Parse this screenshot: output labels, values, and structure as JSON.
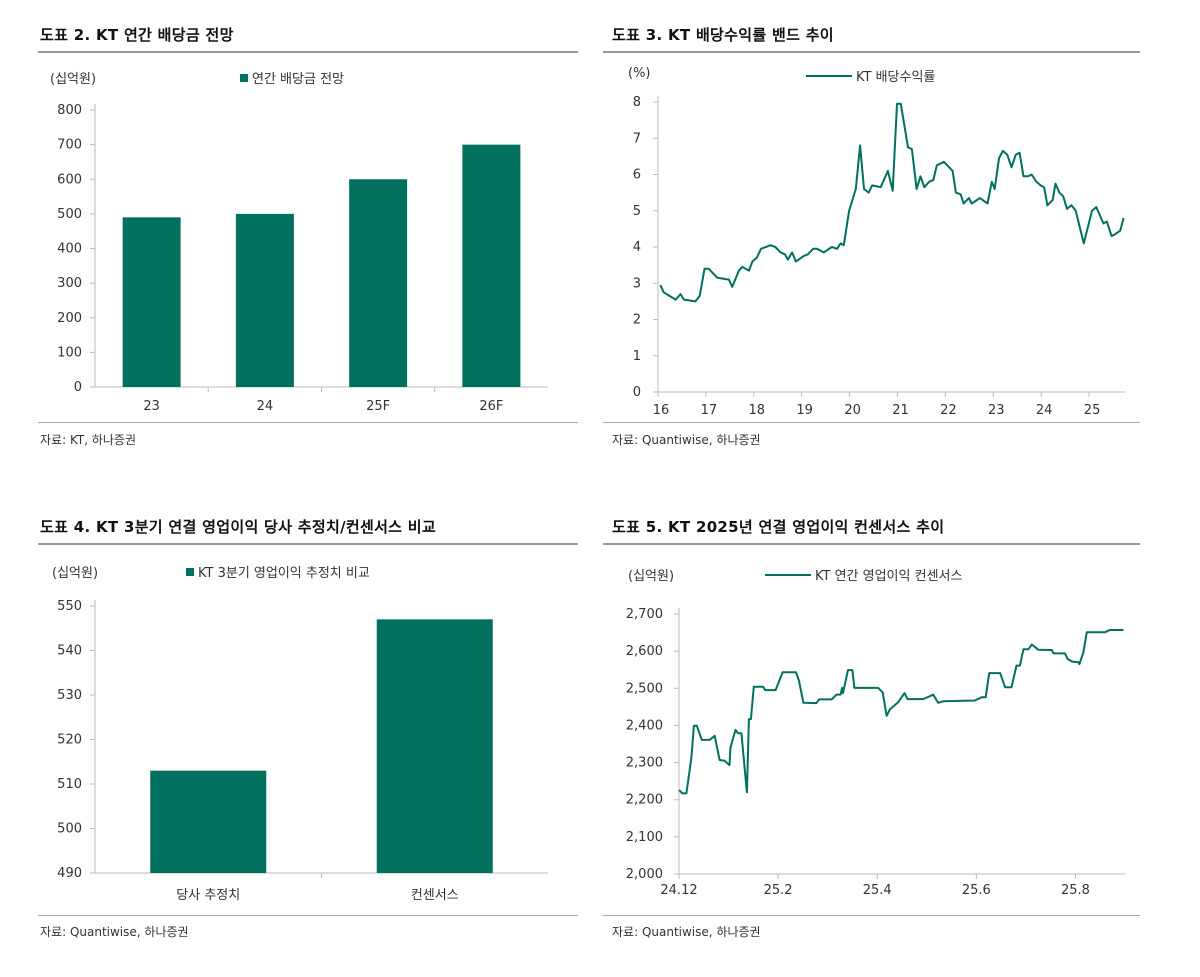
{
  "colors": {
    "accent": "#00705f"
  },
  "chart_data": [
    {
      "id": "c2",
      "type": "bar",
      "title": "도표 2. KT 연간 배당금 전망",
      "unit": "(십억원)",
      "legend": "연간 배당금 전망",
      "source": "자료: KT, 하나증권",
      "categories": [
        "23",
        "24",
        "25F",
        "26F"
      ],
      "values": [
        490,
        500,
        600,
        700
      ],
      "ylim": [
        0,
        800
      ],
      "yticks": [
        "0",
        "100",
        "200",
        "300",
        "400",
        "500",
        "600",
        "700",
        "800"
      ]
    },
    {
      "id": "c3",
      "type": "line",
      "title": "도표 3. KT 배당수익률 밴드 추이",
      "unit": "(%)",
      "legend": "KT 배당수익률",
      "source": "자료: Quantiwise, 하나증권",
      "xlim": [
        16,
        25.75
      ],
      "ylim": [
        0,
        8
      ],
      "xticks": [
        "16",
        "17",
        "18",
        "19",
        "20",
        "21",
        "22",
        "23",
        "24",
        "25"
      ],
      "yticks": [
        "0",
        "1",
        "2",
        "3",
        "4",
        "5",
        "6",
        "7",
        "8"
      ],
      "x": [
        16.05,
        16.12,
        16.37,
        16.47,
        16.54,
        16.78,
        16.87,
        16.97,
        17.06,
        17.24,
        17.48,
        17.55,
        17.69,
        17.76,
        17.9,
        17.97,
        18.06,
        18.15,
        18.35,
        18.45,
        18.56,
        18.65,
        18.71,
        18.8,
        18.88,
        19.04,
        19.13,
        19.24,
        19.32,
        19.46,
        19.63,
        19.74,
        19.81,
        19.88,
        19.99,
        20.13,
        20.22,
        20.3,
        20.4,
        20.47,
        20.65,
        20.8,
        20.9,
        20.99,
        21.07,
        21.22,
        21.3,
        21.4,
        21.48,
        21.56,
        21.66,
        21.75,
        21.82,
        21.97,
        22.15,
        22.22,
        22.32,
        22.38,
        22.49,
        22.55,
        22.72,
        22.88,
        22.97,
        23.03,
        23.12,
        23.2,
        23.29,
        23.38,
        23.47,
        23.55,
        23.63,
        23.73,
        23.8,
        23.9,
        23.99,
        24.06,
        24.13,
        24.24,
        24.3,
        24.38,
        24.46,
        24.54,
        24.63,
        24.72,
        24.89,
        25.06,
        25.15,
        25.3,
        25.37,
        25.47,
        25.54,
        25.65,
        25.72
      ],
      "y": [
        2.95,
        2.75,
        2.55,
        2.7,
        2.55,
        2.5,
        2.65,
        3.4,
        3.4,
        3.15,
        3.1,
        2.9,
        3.35,
        3.45,
        3.35,
        3.6,
        3.7,
        3.95,
        4.05,
        4.0,
        3.85,
        3.8,
        3.65,
        3.85,
        3.6,
        3.75,
        3.8,
        3.95,
        3.95,
        3.85,
        4.0,
        3.95,
        4.1,
        4.05,
        5.0,
        5.6,
        6.8,
        5.6,
        5.5,
        5.7,
        5.65,
        6.1,
        5.55,
        7.95,
        7.95,
        6.75,
        6.7,
        5.6,
        5.95,
        5.65,
        5.8,
        5.85,
        6.25,
        6.35,
        6.1,
        5.5,
        5.45,
        5.2,
        5.35,
        5.2,
        5.35,
        5.2,
        5.8,
        5.6,
        6.45,
        6.65,
        6.55,
        6.2,
        6.55,
        6.6,
        5.95,
        5.95,
        6.0,
        5.8,
        5.7,
        5.65,
        5.15,
        5.3,
        5.75,
        5.5,
        5.4,
        5.05,
        5.15,
        5.0,
        4.1,
        5.0,
        5.1,
        4.65,
        4.7,
        4.3,
        4.35,
        4.45,
        4.8
      ]
    },
    {
      "id": "c4",
      "type": "bar",
      "title": "도표 4. KT 3분기 연결 영업이익 당사 추정치/컨센서스 비교",
      "unit": "(십억원)",
      "legend": "KT 3분기 영업이익 추정치 비교",
      "source": "자료: Quantiwise, 하나증권",
      "categories": [
        "당사 추정치",
        "컨센서스"
      ],
      "values": [
        513,
        547
      ],
      "ylim": [
        490,
        550
      ],
      "yticks": [
        "490",
        "500",
        "510",
        "520",
        "530",
        "540",
        "550"
      ]
    },
    {
      "id": "c5",
      "type": "line",
      "title": "도표 5. KT 2025년 연결 영업이익 컨센서스 추이",
      "unit": "(십억원)",
      "legend": "KT 연간 영업이익 컨센서스",
      "source": "자료: Quantiwise, 하나증권",
      "xlabel_note": "x = months since 24.12",
      "xlim": [
        0,
        9
      ],
      "ylim": [
        2000,
        2700
      ],
      "xticks": [
        "24.12",
        "25.2",
        "25.4",
        "25.6",
        "25.8"
      ],
      "yticks": [
        "2,000",
        "2,100",
        "2,200",
        "2,300",
        "2,400",
        "2,500",
        "2,600",
        "2,700"
      ],
      "x": [
        0,
        0.07,
        0.15,
        0.25,
        0.3,
        0.36,
        0.46,
        0.62,
        0.72,
        0.82,
        0.92,
        1.02,
        1.04,
        1.14,
        1.19,
        1.26,
        1.37,
        1.41,
        1.45,
        1.51,
        1.7,
        1.74,
        1.95,
        2.09,
        2.36,
        2.42,
        2.51,
        2.77,
        2.83,
        3.08,
        3.18,
        3.26,
        3.29,
        3.31,
        3.41,
        3.5,
        3.54,
        4.02,
        4.11,
        4.19,
        4.26,
        4.42,
        4.55,
        4.61,
        4.93,
        5.13,
        5.23,
        5.33,
        5.97,
        6.11,
        6.19,
        6.26,
        6.48,
        6.58,
        6.71,
        6.81,
        6.88,
        6.95,
        7.05,
        7.12,
        7.25,
        7.52,
        7.56,
        7.79,
        7.84,
        7.93,
        8.06,
        8.08,
        8.16,
        8.23,
        8.6,
        8.69,
        8.97
      ],
      "y": [
        2226,
        2217,
        2217,
        2314,
        2399,
        2399,
        2361,
        2361,
        2372,
        2307,
        2305,
        2293,
        2341,
        2388,
        2379,
        2379,
        2220,
        2417,
        2417,
        2504,
        2504,
        2495,
        2495,
        2543,
        2543,
        2521,
        2461,
        2460,
        2470,
        2470,
        2483,
        2483,
        2501,
        2487,
        2549,
        2549,
        2501,
        2501,
        2489,
        2426,
        2444,
        2462,
        2487,
        2471,
        2471,
        2483,
        2461,
        2465,
        2467,
        2476,
        2476,
        2541,
        2541,
        2503,
        2503,
        2561,
        2561,
        2605,
        2605,
        2618,
        2604,
        2603,
        2594,
        2594,
        2579,
        2572,
        2570,
        2565,
        2597,
        2651,
        2651,
        2657,
        2657
      ]
    }
  ]
}
